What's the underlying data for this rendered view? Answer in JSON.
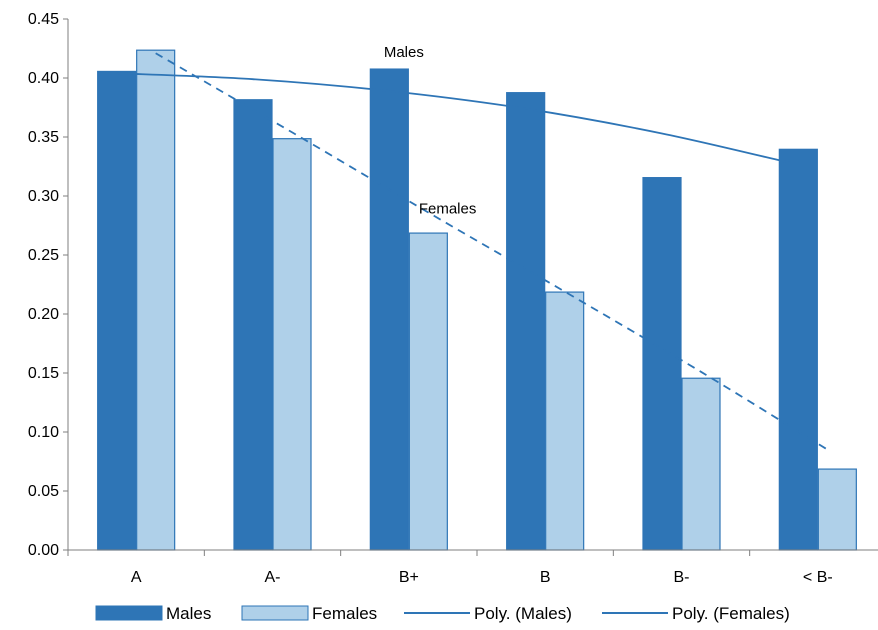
{
  "chart_data": {
    "type": "bar",
    "title": "",
    "xlabel": "",
    "ylabel": "",
    "categories": [
      "A",
      "A-",
      "B+",
      "B",
      "B-",
      "< B-"
    ],
    "ylim": [
      0,
      0.45
    ],
    "yticks": [
      "0.00",
      "0.05",
      "0.10",
      "0.15",
      "0.20",
      "0.25",
      "0.30",
      "0.35",
      "0.40",
      "0.45"
    ],
    "grid": false,
    "legend_position": "bottom",
    "series": [
      {
        "name": "Males",
        "values": [
          0.406,
          0.382,
          0.408,
          0.388,
          0.316,
          0.34
        ],
        "color": "#2e75b6",
        "border": "#2e75b6"
      },
      {
        "name": "Females",
        "values": [
          0.424,
          0.349,
          0.269,
          0.219,
          0.146,
          0.069
        ],
        "color": "#afd0e9",
        "border": "#2e75b6"
      }
    ],
    "trendlines": [
      {
        "name": "Poly. (Males)",
        "of": "Males",
        "style": "solid",
        "color": "#2e75b6",
        "points": [
          0.404,
          0.399,
          0.389,
          0.374,
          0.353,
          0.328
        ],
        "x_end_offset": -0.2
      },
      {
        "name": "Poly. (Females)",
        "of": "Females",
        "style": "dashed",
        "color": "#2e75b6",
        "points": [
          0.421,
          0.354,
          0.286,
          0.219,
          0.151,
          0.084
        ],
        "x_end_offset": -0.2
      }
    ],
    "annotations": [
      {
        "text": "Males",
        "category_index": 2,
        "y": 0.418
      },
      {
        "text": "Females",
        "category_index": 2,
        "y": 0.285
      }
    ]
  }
}
